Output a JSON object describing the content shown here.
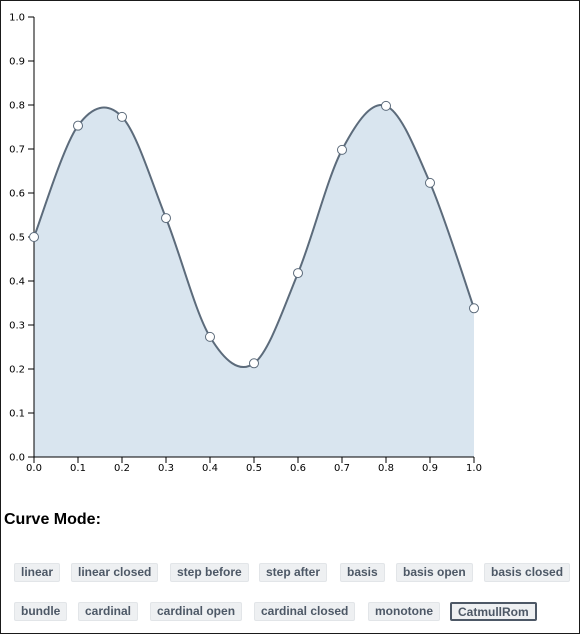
{
  "chart_data": {
    "type": "area",
    "interpolation": "CatmullRom",
    "x": [
      0.0,
      0.1,
      0.2,
      0.3,
      0.4,
      0.5,
      0.6,
      0.7,
      0.8,
      0.9,
      1.0
    ],
    "y": [
      0.5,
      0.753,
      0.773,
      0.543,
      0.273,
      0.213,
      0.418,
      0.698,
      0.798,
      0.623,
      0.338
    ],
    "xlim": [
      0,
      1
    ],
    "ylim": [
      0,
      1
    ],
    "x_ticks": [
      "0.0",
      "0.1",
      "0.2",
      "0.3",
      "0.4",
      "0.5",
      "0.6",
      "0.7",
      "0.8",
      "0.9",
      "1.0"
    ],
    "y_ticks": [
      "0.0",
      "0.1",
      "0.2",
      "0.3",
      "0.4",
      "0.5",
      "0.6",
      "0.7",
      "0.8",
      "0.9",
      "1.0"
    ],
    "grid": false,
    "colors": {
      "fill": "#d9e5ef",
      "line": "#5c6b7b",
      "point_fill": "#ffffff",
      "point_stroke": "#5c6b7b"
    }
  },
  "controls": {
    "title": "Curve Mode:",
    "selected": "CatmullRom",
    "buttons": [
      "linear",
      "linear closed",
      "step before",
      "step after",
      "basis",
      "basis open",
      "basis closed",
      "bundle",
      "cardinal",
      "cardinal open",
      "cardinal closed",
      "monotone",
      "CatmullRom"
    ]
  }
}
